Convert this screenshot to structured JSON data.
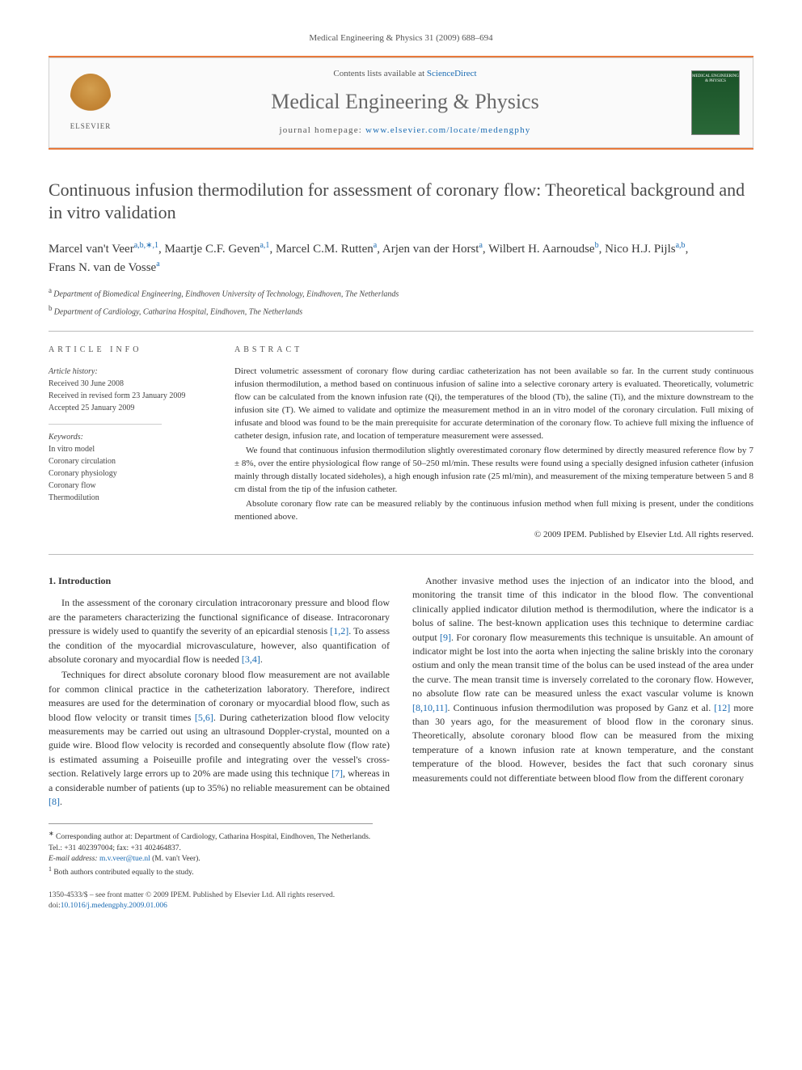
{
  "header": {
    "citation": "Medical Engineering & Physics 31 (2009) 688–694"
  },
  "banner": {
    "contents_prefix": "Contents lists available at ",
    "contents_link": "ScienceDirect",
    "journal": "Medical Engineering & Physics",
    "homepage_prefix": "journal homepage: ",
    "homepage_link": "www.elsevier.com/locate/medengphy",
    "publisher_label": "ELSEVIER",
    "cover_label": "MEDICAL ENGINEERING & PHYSICS"
  },
  "title": "Continuous infusion thermodilution for assessment of coronary flow: Theoretical background and in vitro validation",
  "authors_html_parts": [
    {
      "name": "Marcel van't Veer",
      "sup": "a,b,∗,1"
    },
    {
      "name": "Maartje C.F. Geven",
      "sup": "a,1"
    },
    {
      "name": "Marcel C.M. Rutten",
      "sup": "a"
    },
    {
      "name": "Arjen van der Horst",
      "sup": "a"
    },
    {
      "name": "Wilbert H. Aarnoudse",
      "sup": "b"
    },
    {
      "name": "Nico H.J. Pijls",
      "sup": "a,b"
    },
    {
      "name": "Frans N. van de Vosse",
      "sup": "a"
    }
  ],
  "affiliations": [
    {
      "sup": "a",
      "text": "Department of Biomedical Engineering, Eindhoven University of Technology, Eindhoven, The Netherlands"
    },
    {
      "sup": "b",
      "text": "Department of Cardiology, Catharina Hospital, Eindhoven, The Netherlands"
    }
  ],
  "article_info": {
    "heading": "ARTICLE INFO",
    "history_label": "Article history:",
    "received": "Received 30 June 2008",
    "revised": "Received in revised form 23 January 2009",
    "accepted": "Accepted 25 January 2009",
    "keywords_label": "Keywords:",
    "keywords": [
      "In vitro model",
      "Coronary circulation",
      "Coronary physiology",
      "Coronary flow",
      "Thermodilution"
    ]
  },
  "abstract": {
    "heading": "ABSTRACT",
    "paragraphs": [
      "Direct volumetric assessment of coronary flow during cardiac catheterization has not been available so far. In the current study continuous infusion thermodilution, a method based on continuous infusion of saline into a selective coronary artery is evaluated. Theoretically, volumetric flow can be calculated from the known infusion rate (Qi), the temperatures of the blood (Tb), the saline (Ti), and the mixture downstream to the infusion site (T). We aimed to validate and optimize the measurement method in an in vitro model of the coronary circulation. Full mixing of infusate and blood was found to be the main prerequisite for accurate determination of the coronary flow. To achieve full mixing the influence of catheter design, infusion rate, and location of temperature measurement were assessed.",
      "We found that continuous infusion thermodilution slightly overestimated coronary flow determined by directly measured reference flow by 7 ± 8%, over the entire physiological flow range of 50–250 ml/min. These results were found using a specially designed infusion catheter (infusion mainly through distally located sideholes), a high enough infusion rate (25 ml/min), and measurement of the mixing temperature between 5 and 8 cm distal from the tip of the infusion catheter.",
      "Absolute coronary flow rate can be measured reliably by the continuous infusion method when full mixing is present, under the conditions mentioned above."
    ],
    "copyright": "© 2009 IPEM. Published by Elsevier Ltd. All rights reserved."
  },
  "body": {
    "section_heading": "1. Introduction",
    "paragraphs": [
      "In the assessment of the coronary circulation intracoronary pressure and blood flow are the parameters characterizing the functional significance of disease. Intracoronary pressure is widely used to quantify the severity of an epicardial stenosis [1,2]. To assess the condition of the myocardial microvasculature, however, also quantification of absolute coronary and myocardial flow is needed [3,4].",
      "Techniques for direct absolute coronary blood flow measurement are not available for common clinical practice in the catheterization laboratory. Therefore, indirect measures are used for the determination of coronary or myocardial blood flow, such as blood flow velocity or transit times [5,6]. During catheterization blood flow velocity measurements may be carried out using an ultrasound Doppler-crystal, mounted on a guide wire. Blood flow velocity is recorded and consequently absolute flow (flow rate) is estimated assuming a Poiseuille profile and integrating over the vessel's cross-section. Relatively large errors up to 20% are made using this technique [7], whereas in a considerable number of patients (up to 35%) no reliable measurement can be obtained [8].",
      "Another invasive method uses the injection of an indicator into the blood, and monitoring the transit time of this indicator in the blood flow. The conventional clinically applied indicator dilution method is thermodilution, where the indicator is a bolus of saline. The best-known application uses this technique to determine cardiac output [9]. For coronary flow measurements this technique is unsuitable. An amount of indicator might be lost into the aorta when injecting the saline briskly into the coronary ostium and only the mean transit time of the bolus can be used instead of the area under the curve. The mean transit time is inversely correlated to the coronary flow. However, no absolute flow rate can be measured unless the exact vascular volume is known [8,10,11]. Continuous infusion thermodilution was proposed by Ganz et al. [12] more than 30 years ago, for the measurement of blood flow in the coronary sinus. Theoretically, absolute coronary blood flow can be measured from the mixing temperature of a known infusion rate at known temperature, and the constant temperature of the blood. However, besides the fact that such coronary sinus measurements could not differentiate between blood flow from the different coronary"
    ],
    "refs": [
      "[1,2]",
      "[3,4]",
      "[5,6]",
      "[7]",
      "[8]",
      "[9]",
      "[8,10,11]",
      "[12]"
    ]
  },
  "footnotes": {
    "corr_sym": "∗",
    "corr": "Corresponding author at: Department of Cardiology, Catharina Hospital, Eindhoven, The Netherlands. Tel.: +31 402397004; fax: +31 402464837.",
    "email_label": "E-mail address: ",
    "email": "m.v.veer@tue.nl",
    "email_suffix": " (M. van't Veer).",
    "shared_sym": "1",
    "shared": "Both authors contributed equally to the study."
  },
  "footer": {
    "line1": "1350-4533/$ – see front matter © 2009 IPEM. Published by Elsevier Ltd. All rights reserved.",
    "doi_label": "doi:",
    "doi": "10.1016/j.medengphy.2009.01.006"
  },
  "colors": {
    "accent_orange": "#e87a3c",
    "link_blue": "#1a6bb3",
    "text_gray": "#4a4a4a"
  }
}
